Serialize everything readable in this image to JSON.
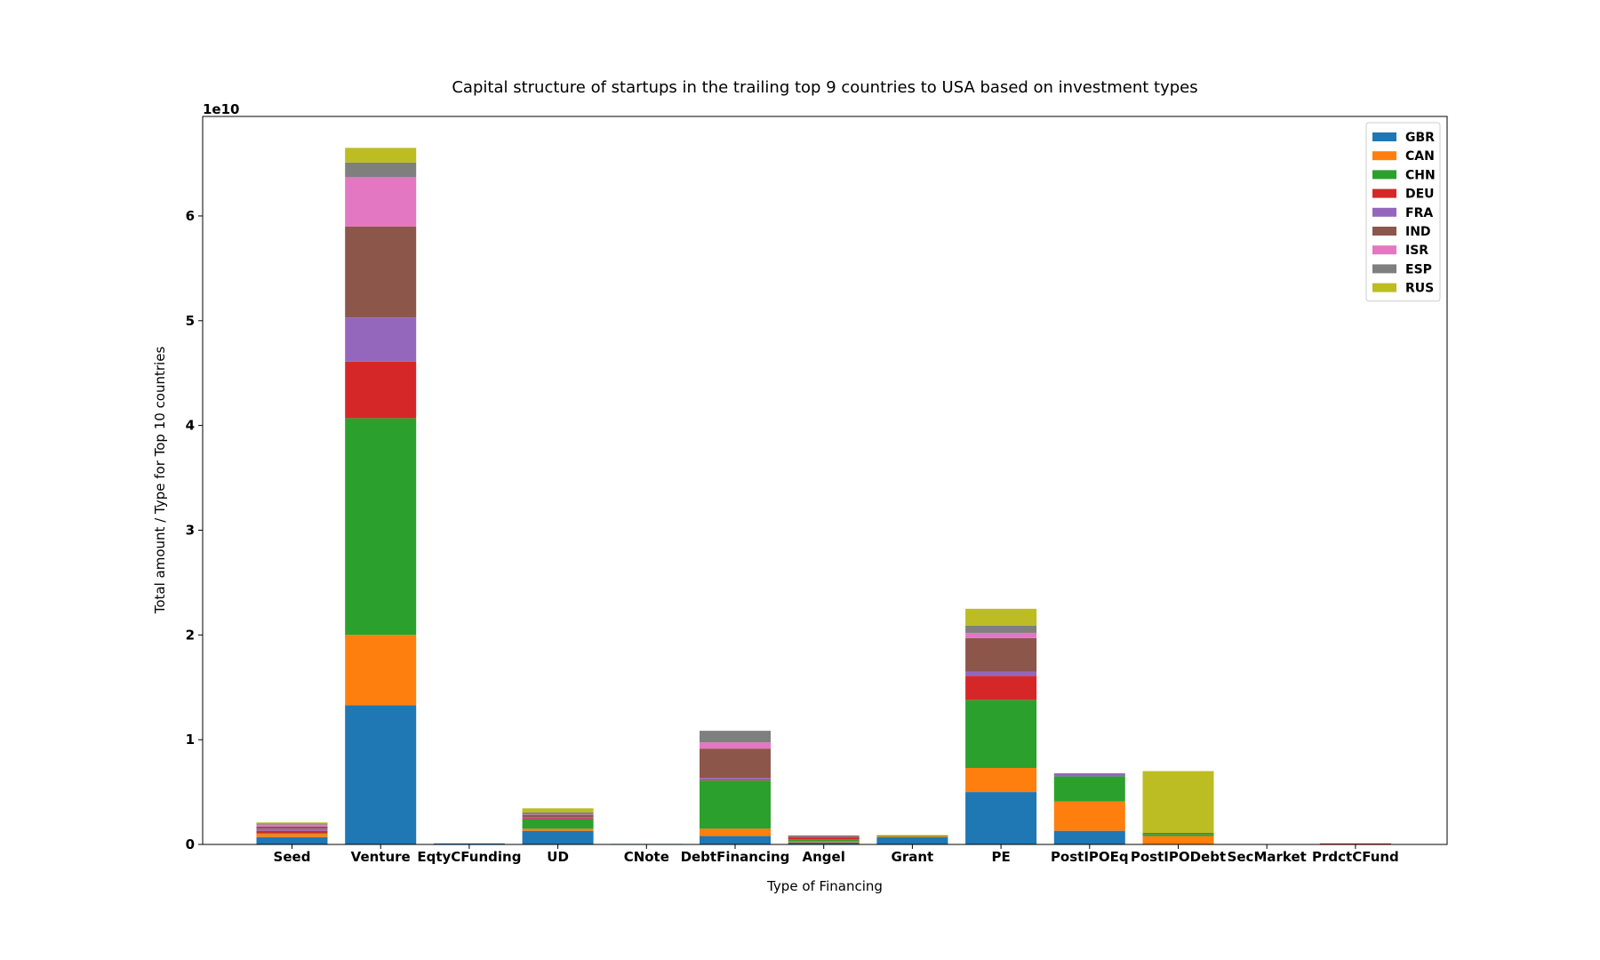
{
  "chart_data": {
    "type": "bar",
    "stacked": true,
    "title": "Capital structure of startups in the trailing top 9 countries to USA based on investment types",
    "xlabel": "Type of Financing",
    "ylabel": "Total amount / Type for Top 10 countries",
    "y_scale_label": "1e10",
    "y_unit": 10000000000,
    "ylim": [
      0,
      6.95
    ],
    "yticks": [
      0,
      1,
      2,
      3,
      4,
      5,
      6
    ],
    "ytick_labels": [
      "0",
      "1",
      "2",
      "3",
      "4",
      "5",
      "6"
    ],
    "legend_position": "top-right",
    "categories": [
      "Seed",
      "Venture",
      "EqtyCFunding",
      "UD",
      "CNote",
      "DebtFinancing",
      "Angel",
      "Grant",
      "PE",
      "PostIPOEq",
      "PostIPODebt",
      "SecMarket",
      "PrdctCFund"
    ],
    "series": [
      {
        "name": "GBR",
        "color": "#1f77b4",
        "values": [
          0.07,
          1.33,
          0.01,
          0.13,
          0.005,
          0.08,
          0.02,
          0.07,
          0.5,
          0.13,
          0.0,
          0.0,
          0.0
        ]
      },
      {
        "name": "CAN",
        "color": "#ff7f0e",
        "values": [
          0.03,
          0.67,
          0.0,
          0.02,
          0.0,
          0.07,
          0.01,
          0.01,
          0.23,
          0.28,
          0.08,
          0.0,
          0.0
        ]
      },
      {
        "name": "CHN",
        "color": "#2ca02c",
        "values": [
          0.01,
          2.07,
          0.0,
          0.09,
          0.0,
          0.46,
          0.02,
          0.005,
          0.65,
          0.24,
          0.02,
          0.0,
          0.0
        ]
      },
      {
        "name": "DEU",
        "color": "#d62728",
        "values": [
          0.02,
          0.54,
          0.0,
          0.01,
          0.0,
          0.005,
          0.02,
          0.0,
          0.23,
          0.0,
          0.0,
          0.0,
          0.01
        ]
      },
      {
        "name": "FRA",
        "color": "#9467bd",
        "values": [
          0.02,
          0.42,
          0.0,
          0.01,
          0.0,
          0.02,
          0.005,
          0.0,
          0.04,
          0.03,
          0.0,
          0.0,
          0.0
        ]
      },
      {
        "name": "IND",
        "color": "#8c564b",
        "values": [
          0.02,
          0.87,
          0.0,
          0.02,
          0.0,
          0.28,
          0.01,
          0.0,
          0.32,
          0.0,
          0.01,
          0.0,
          0.0
        ]
      },
      {
        "name": "ISR",
        "color": "#e377c2",
        "values": [
          0.02,
          0.47,
          0.0,
          0.005,
          0.0,
          0.06,
          0.0,
          0.0,
          0.05,
          0.0,
          0.0,
          0.0,
          0.0
        ]
      },
      {
        "name": "ESP",
        "color": "#7f7f7f",
        "values": [
          0.01,
          0.14,
          0.0,
          0.02,
          0.0,
          0.11,
          0.0,
          0.0,
          0.07,
          0.0,
          0.0,
          0.0,
          0.0
        ]
      },
      {
        "name": "RUS",
        "color": "#bcbd22",
        "values": [
          0.01,
          0.14,
          0.0,
          0.04,
          0.0,
          0.0,
          0.0,
          0.005,
          0.16,
          0.0,
          0.59,
          0.0,
          0.0
        ]
      }
    ]
  }
}
